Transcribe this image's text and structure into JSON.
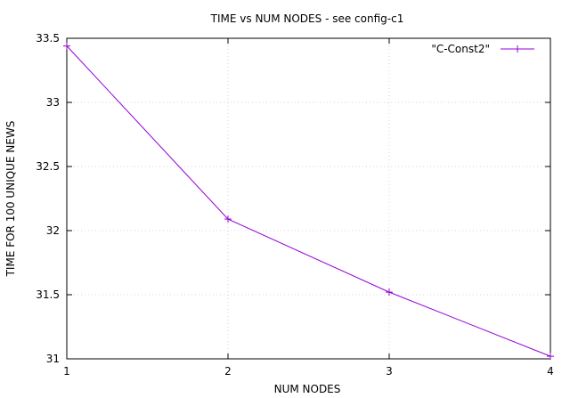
{
  "chart_data": {
    "type": "line",
    "title": "TIME vs NUM NODES - see config-c1",
    "xlabel": "NUM NODES",
    "ylabel": "TIME FOR 100 UNIQUE NEWS",
    "xlim": [
      1,
      4
    ],
    "ylim": [
      31,
      33.5
    ],
    "x_ticks": [
      1,
      2,
      3,
      4
    ],
    "y_ticks": [
      31,
      31.5,
      32,
      32.5,
      33,
      33.5
    ],
    "x_tick_labels": [
      "1",
      "2",
      "3",
      "4"
    ],
    "y_tick_labels": [
      "31",
      "31.5",
      "32",
      "32.5",
      "33",
      "33.5"
    ],
    "grid": true,
    "legend_position": "top-right",
    "series": [
      {
        "name": "\"C-Const2\"",
        "color": "#9400d3",
        "marker": "plus",
        "x": [
          1,
          2,
          3,
          4
        ],
        "y": [
          33.44,
          32.09,
          31.52,
          31.02
        ]
      }
    ]
  }
}
